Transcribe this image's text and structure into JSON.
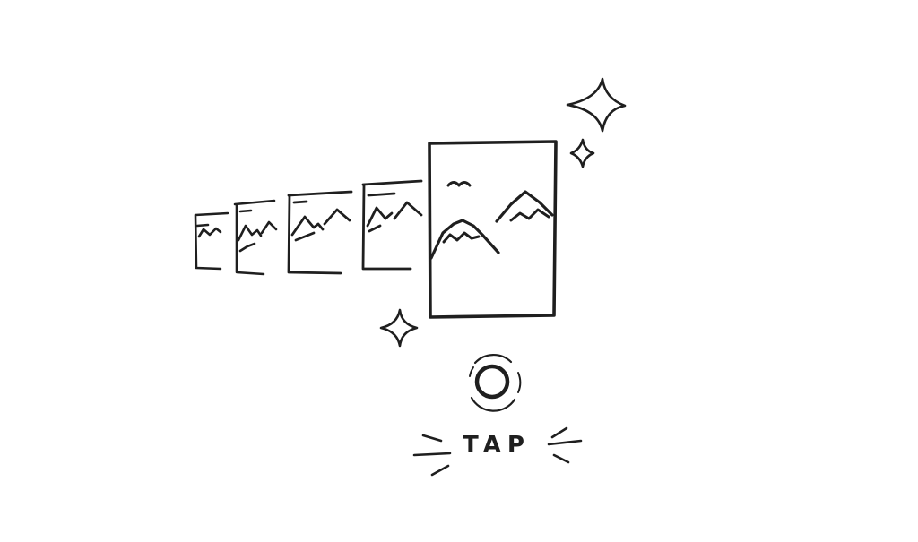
{
  "illustration": {
    "frame_count": 5,
    "ink_color": "#1f1f1f",
    "background_color": "#ffffff"
  },
  "tap_hint": {
    "label": "TAP"
  }
}
